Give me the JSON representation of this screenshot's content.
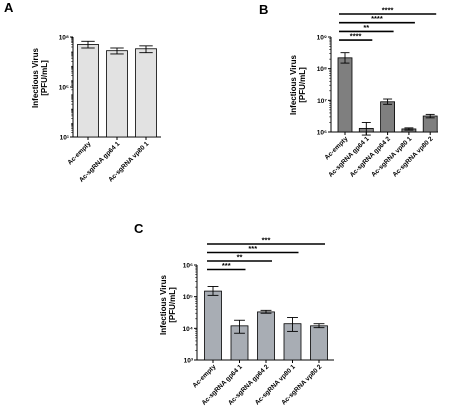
{
  "chart_data": [
    {
      "panel": "A",
      "type": "bar",
      "ylabel": "Infectious Virus\n[PFU/mL]",
      "yscale": "log",
      "ylim": [
        10,
        100000000
      ],
      "yticks": [
        "10¹",
        "10⁵",
        "10⁸"
      ],
      "categories": [
        "Ac-empty",
        "Ac-sgRNA gp64 1",
        "Ac-sgRNA vp80 1"
      ],
      "series": [
        {
          "values": [
            30000000,
            11000000,
            15000000
          ],
          "err_low": [
            17000000,
            6500000,
            8000000
          ],
          "err_high": [
            50000000,
            17000000,
            24000000
          ],
          "color": "#e2e2e2"
        }
      ],
      "significance": []
    },
    {
      "panel": "B",
      "type": "bar",
      "ylabel": "Infectious Virus\n[PFU/mL]",
      "yscale": "log",
      "ylim": [
        1000000,
        1000000000
      ],
      "yticks": [
        "10⁶",
        "10⁷",
        "10⁸",
        "10⁹"
      ],
      "categories": [
        "Ac-empty",
        "Ac-sgRNA gp64 1",
        "Ac-sgRNA gp64 2",
        "Ac-sgRNA vp80 1",
        "Ac-sgRNA vp80 2"
      ],
      "series": [
        {
          "values": [
            220000000,
            1300000,
            9000000,
            1250000,
            3200000
          ],
          "err_low": [
            150000000,
            800000,
            7500000,
            1150000,
            2800000
          ],
          "err_high": [
            320000000,
            2000000,
            11000000,
            1350000,
            3600000
          ],
          "color": "#7f7f7f"
        }
      ],
      "significance": [
        {
          "from": 0,
          "to": 4,
          "label": "****"
        },
        {
          "from": 0,
          "to": 3,
          "label": "****"
        },
        {
          "from": 0,
          "to": 2,
          "label": "**"
        },
        {
          "from": 0,
          "to": 1,
          "label": "****"
        }
      ]
    },
    {
      "panel": "C",
      "type": "bar",
      "ylabel": "Infectious Virus\n[PFU/mL]",
      "yscale": "log",
      "ylim": [
        100,
        100000
      ],
      "yticks": [
        "10³",
        "10⁴",
        "10⁵",
        "10⁶"
      ],
      "categories": [
        "Ac-empty",
        "Ac-sgRNA gp64 1",
        "Ac-sgRNA gp64 2",
        "Ac-sgRNA vp80 1",
        "Ac-sgRNA vp80 2"
      ],
      "series": [
        {
          "values": [
            15000,
            1200,
            3300,
            1400,
            1200
          ],
          "err_low": [
            11000,
            700,
            3000,
            800,
            1050
          ],
          "err_high": [
            21000,
            1800,
            3700,
            2200,
            1400
          ],
          "color": "#a8adb4"
        }
      ],
      "significance": [
        {
          "from": 0,
          "to": 4,
          "label": "***"
        },
        {
          "from": 0,
          "to": 3,
          "label": "***"
        },
        {
          "from": 0,
          "to": 2,
          "label": "**"
        },
        {
          "from": 0,
          "to": 1,
          "label": "***"
        }
      ]
    }
  ]
}
